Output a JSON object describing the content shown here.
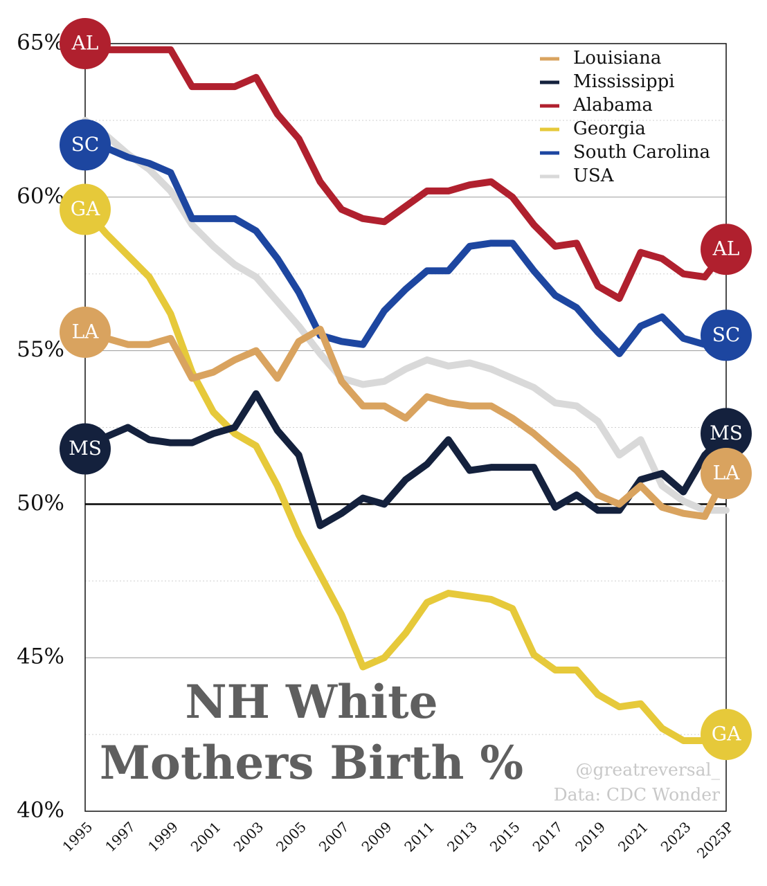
{
  "chart_data": {
    "type": "line",
    "title": [
      "NH White",
      "Mothers Birth %"
    ],
    "credits": [
      "@greatreversal_",
      "Data: CDC Wonder"
    ],
    "categories": [
      "1995",
      null,
      "1997",
      null,
      "1999",
      null,
      "2001",
      null,
      "2003",
      null,
      "2005",
      null,
      "2007",
      null,
      "2009",
      null,
      "2011",
      null,
      "2013",
      null,
      "2015",
      null,
      "2017",
      null,
      "2019",
      null,
      "2021",
      null,
      "2023",
      null,
      "2025P"
    ],
    "ylim": [
      40,
      65
    ],
    "yticks": [
      {
        "value": 40,
        "label": "40%"
      },
      {
        "value": 45,
        "label": "45%"
      },
      {
        "value": 50,
        "label": "50%"
      },
      {
        "value": 55,
        "label": "55%"
      },
      {
        "value": 60,
        "label": "60%"
      },
      {
        "value": 65,
        "label": "65%"
      }
    ],
    "minor_yticks": [
      42.5,
      47.5,
      52.5,
      57.5,
      62.5
    ],
    "reference_line": 50,
    "legend": "top-right",
    "series": [
      {
        "name": "Louisiana",
        "abbr": "LA",
        "color": "#d9a35f",
        "values": [
          55.6,
          55.4,
          55.2,
          55.2,
          55.4,
          54.1,
          54.3,
          54.7,
          55.0,
          54.1,
          55.3,
          55.7,
          54.0,
          53.2,
          53.2,
          52.8,
          53.5,
          53.3,
          53.2,
          53.2,
          52.8,
          52.3,
          51.7,
          51.1,
          50.3,
          50.0,
          50.6,
          49.9,
          49.7,
          49.6,
          51.0
        ]
      },
      {
        "name": "Mississippi",
        "abbr": "MS",
        "color": "#14213d",
        "values": [
          51.8,
          52.2,
          52.5,
          52.1,
          52.0,
          52.0,
          52.3,
          52.5,
          53.6,
          52.4,
          51.6,
          49.3,
          49.7,
          50.2,
          50.0,
          50.8,
          51.3,
          52.1,
          51.1,
          51.2,
          51.2,
          51.2,
          49.9,
          50.3,
          49.8,
          49.8,
          50.8,
          51.0,
          50.4,
          51.6,
          52.3
        ]
      },
      {
        "name": "Alabama",
        "abbr": "AL",
        "color": "#b0202e",
        "values": [
          65.0,
          64.8,
          64.8,
          64.8,
          64.8,
          63.6,
          63.6,
          63.6,
          63.9,
          62.7,
          61.9,
          60.5,
          59.6,
          59.3,
          59.2,
          59.7,
          60.2,
          60.2,
          60.4,
          60.5,
          60.0,
          59.1,
          58.4,
          58.5,
          57.1,
          56.7,
          58.2,
          58.0,
          57.5,
          57.4,
          58.3
        ]
      },
      {
        "name": "Georgia",
        "abbr": "GA",
        "color": "#e6c93a",
        "values": [
          59.6,
          58.8,
          58.1,
          57.4,
          56.2,
          54.3,
          53.0,
          52.3,
          51.9,
          50.6,
          49.0,
          47.7,
          46.4,
          44.7,
          45.0,
          45.8,
          46.8,
          47.1,
          47.0,
          46.9,
          46.6,
          45.1,
          44.6,
          44.6,
          43.8,
          43.4,
          43.5,
          42.7,
          42.3,
          42.3,
          42.5
        ]
      },
      {
        "name": "South Carolina",
        "abbr": "SC",
        "color": "#1d46a0",
        "values": [
          61.7,
          61.6,
          61.3,
          61.1,
          60.8,
          59.3,
          59.3,
          59.3,
          58.9,
          58.0,
          56.9,
          55.5,
          55.3,
          55.2,
          56.3,
          57.0,
          57.6,
          57.6,
          58.4,
          58.5,
          58.5,
          57.6,
          56.8,
          56.4,
          55.6,
          54.9,
          55.8,
          56.1,
          55.4,
          55.2,
          55.5
        ]
      },
      {
        "name": "USA",
        "color": "#d9d9d9",
        "values": [
          62.5,
          62.0,
          61.4,
          60.9,
          60.2,
          59.1,
          58.4,
          57.8,
          57.4,
          56.6,
          55.8,
          54.9,
          54.1,
          53.9,
          54.0,
          54.4,
          54.7,
          54.5,
          54.6,
          54.4,
          54.1,
          53.8,
          53.3,
          53.2,
          52.7,
          51.6,
          52.1,
          50.6,
          50.1,
          49.8,
          49.8
        ]
      }
    ]
  }
}
